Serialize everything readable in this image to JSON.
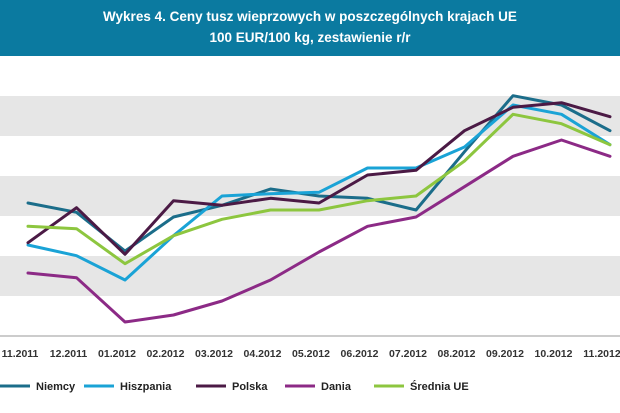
{
  "chart_data": {
    "type": "line",
    "title": "Wykres 4. Ceny tusz wieprzowych w poszczególnych krajach UE",
    "subtitle": "100 EUR/100 kg, zestawienie r/r",
    "xlabel": "",
    "ylabel": "",
    "ylim": [
      0,
      6
    ],
    "grid": "horizontal bands",
    "legend": "bottom",
    "categories": [
      "11.2011",
      "12.2011",
      "01.2012",
      "02.2012",
      "03.2012",
      "04.2012",
      "05.2012",
      "06.2012",
      "07.2012",
      "08.2012",
      "09.2012",
      "10.2012",
      "11.2012"
    ],
    "series": [
      {
        "name": "Niemcy",
        "color": "#1b6d8a",
        "values": [
          2.85,
          2.65,
          1.82,
          2.55,
          2.8,
          3.15,
          3.0,
          2.95,
          2.7,
          3.95,
          5.15,
          4.95,
          4.4
        ]
      },
      {
        "name": "Hiszpania",
        "color": "#1aa3d6",
        "values": [
          1.95,
          1.72,
          1.2,
          2.15,
          3.0,
          3.05,
          3.08,
          3.6,
          3.6,
          4.05,
          4.95,
          4.75,
          4.1
        ]
      },
      {
        "name": "Polska",
        "color": "#4b1a45",
        "values": [
          2.0,
          2.75,
          1.75,
          2.9,
          2.8,
          2.95,
          2.85,
          3.45,
          3.55,
          4.4,
          4.9,
          5.0,
          4.7
        ]
      },
      {
        "name": "Dania",
        "color": "#8c2a86",
        "values": [
          1.35,
          1.25,
          0.3,
          0.45,
          0.75,
          1.2,
          1.8,
          2.35,
          2.55,
          3.2,
          3.85,
          4.2,
          3.85
        ]
      },
      {
        "name": "Średnia UE",
        "color": "#8dc63f",
        "values": [
          2.35,
          2.3,
          1.55,
          2.15,
          2.5,
          2.7,
          2.7,
          2.9,
          3.0,
          3.75,
          4.75,
          4.55,
          4.1
        ]
      }
    ]
  }
}
